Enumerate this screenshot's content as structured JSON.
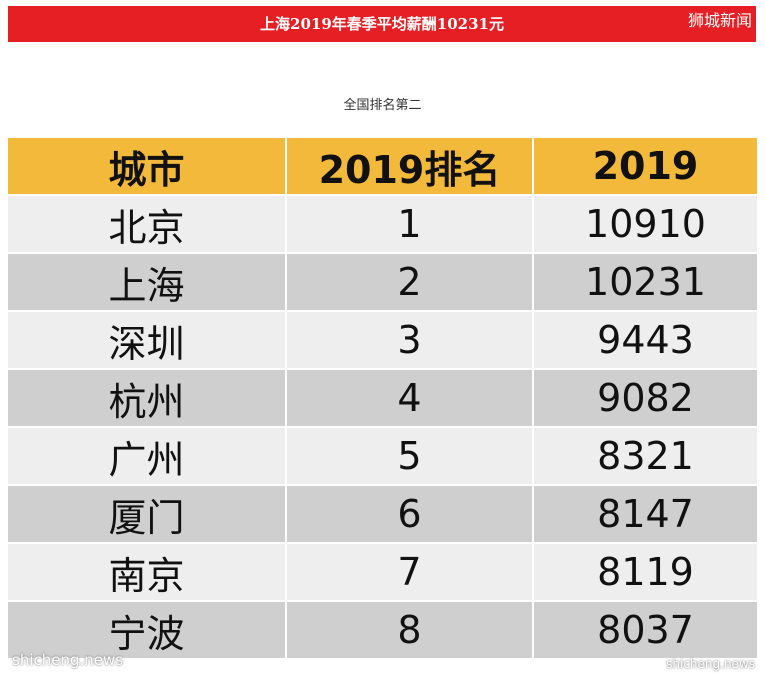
{
  "banner": {
    "title": "上海2019年春季平均薪酬10231元",
    "brand": "狮城新闻",
    "color": "#e51f23"
  },
  "caption": "全国排名第二",
  "table": {
    "header_color": "#f2b93b",
    "headers": [
      "城市",
      "2019排名",
      "2019"
    ],
    "rows": [
      [
        "北京",
        "1",
        "10910"
      ],
      [
        "上海",
        "2",
        "10231"
      ],
      [
        "深圳",
        "3",
        "9443"
      ],
      [
        "杭州",
        "4",
        "9082"
      ],
      [
        "广州",
        "5",
        "8321"
      ],
      [
        "厦门",
        "6",
        "8147"
      ],
      [
        "南京",
        "7",
        "8119"
      ],
      [
        "宁波",
        "8",
        "8037"
      ]
    ]
  },
  "watermarks": {
    "left": "shicheng.news",
    "right": "shicheng.news"
  }
}
